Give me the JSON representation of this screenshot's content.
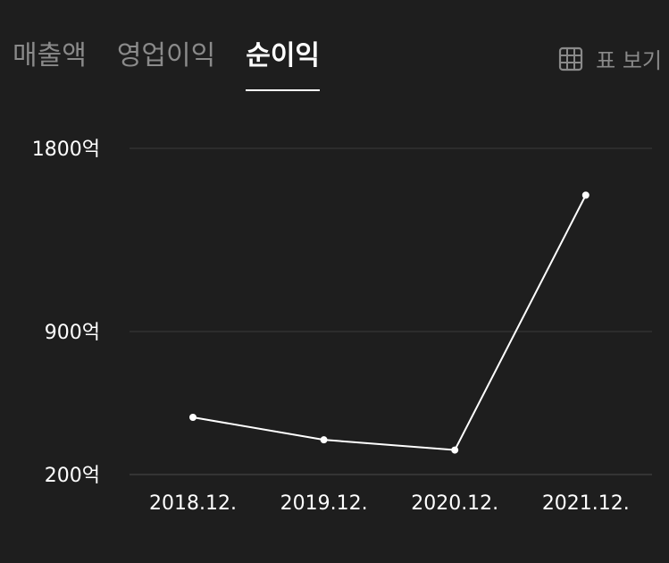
{
  "tabs": [
    {
      "label": "매출액",
      "active": false
    },
    {
      "label": "영업이익",
      "active": false
    },
    {
      "label": "순이익",
      "active": true
    }
  ],
  "table_view": {
    "label": "표 보기",
    "icon": "table-grid-icon"
  },
  "colors": {
    "background": "#1e1e1e",
    "line": "#ffffff",
    "grid": "#3a3a3a",
    "inactive_text": "#8a8a8a",
    "active_text": "#ffffff"
  },
  "chart_data": {
    "type": "line",
    "title": "",
    "xlabel": "",
    "ylabel": "",
    "categories": [
      "2018.12.",
      "2019.12.",
      "2020.12.",
      "2021.12."
    ],
    "series": [
      {
        "values": [
          480,
          370,
          320,
          1570
        ]
      }
    ],
    "yticks": [
      {
        "value": 200,
        "label": "200억"
      },
      {
        "value": 900,
        "label": "900억"
      },
      {
        "value": 1800,
        "label": "1800억"
      }
    ],
    "grid": true,
    "legend": "none"
  }
}
